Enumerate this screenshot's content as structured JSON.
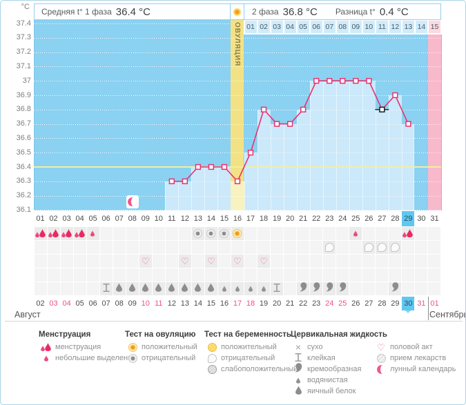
{
  "header": {
    "unit": "°C",
    "phase1_label": "Средняя t° 1 фаза",
    "phase1_value": "36.4 °C",
    "phase2_label": "2 фаза",
    "phase2_value": "36.8 °C",
    "diff_label": "Разница t°",
    "diff_value": "0.4 °C",
    "ovulation_label": "ОВУЛЯЦИЯ"
  },
  "months": {
    "left": "Август",
    "right": "Сентябрь"
  },
  "chart_data": {
    "type": "line",
    "title": "",
    "ylabel": "°C",
    "ylim": [
      36.1,
      37.4
    ],
    "yticks": [
      "37.4",
      "37.3",
      "37.2",
      "37.1",
      "37",
      "36.9",
      "36.8",
      "36.7",
      "36.6",
      "36.5",
      "36.4",
      "36.3",
      "36.2",
      "36.1"
    ],
    "avg_phase1_temp": 36.4,
    "ovulation_day": 16,
    "selected_day": 27,
    "expected_period_day": 31,
    "moon_event_day": 8,
    "cycle_day_labels": [
      "01",
      "02",
      "03",
      "04",
      "05",
      "06",
      "07",
      "08",
      "09",
      "10",
      "11",
      "12",
      "13",
      "14",
      "15",
      "16",
      "17",
      "18",
      "19",
      "20",
      "21",
      "22",
      "23",
      "24",
      "25",
      "26",
      "27",
      "28",
      "29",
      "30",
      "31"
    ],
    "highlighted_cycle_day": 29,
    "dpo_labels": [
      "01",
      "02",
      "03",
      "04",
      "05",
      "06",
      "07",
      "08",
      "09",
      "10",
      "11",
      "12",
      "13",
      "14",
      "15"
    ],
    "dpo_start_day": 17,
    "series": [
      {
        "name": "basal-temperature",
        "points": [
          {
            "day": 11,
            "temp": 36.3
          },
          {
            "day": 12,
            "temp": 36.3
          },
          {
            "day": 13,
            "temp": 36.4
          },
          {
            "day": 14,
            "temp": 36.4
          },
          {
            "day": 15,
            "temp": 36.4
          },
          {
            "day": 16,
            "temp": 36.3
          },
          {
            "day": 17,
            "temp": 36.5
          },
          {
            "day": 18,
            "temp": 36.8
          },
          {
            "day": 19,
            "temp": 36.7
          },
          {
            "day": 20,
            "temp": 36.7
          },
          {
            "day": 21,
            "temp": 36.8
          },
          {
            "day": 22,
            "temp": 37.0
          },
          {
            "day": 23,
            "temp": 37.0
          },
          {
            "day": 24,
            "temp": 37.0
          },
          {
            "day": 25,
            "temp": 37.0
          },
          {
            "day": 26,
            "temp": 37.0
          },
          {
            "day": 27,
            "temp": 36.8
          },
          {
            "day": 28,
            "temp": 36.9
          },
          {
            "day": 29,
            "temp": 36.7
          }
        ]
      }
    ],
    "date_labels": [
      "02",
      "03",
      "04",
      "05",
      "06",
      "07",
      "08",
      "09",
      "10",
      "11",
      "12",
      "13",
      "14",
      "15",
      "16",
      "17",
      "18",
      "19",
      "20",
      "21",
      "22",
      "23",
      "24",
      "25",
      "26",
      "27",
      "28",
      "29",
      "30",
      "31",
      "01"
    ],
    "red_date_indices": [
      1,
      2,
      8,
      9,
      15,
      16,
      22,
      23,
      29,
      30
    ],
    "highlighted_date_index": 28
  },
  "event_rows": [
    {
      "name": "menstruation-and-ovulation-tests",
      "cells": [
        {
          "day": 1,
          "icon": "menses-heavy"
        },
        {
          "day": 2,
          "icon": "menses-heavy"
        },
        {
          "day": 3,
          "icon": "menses-heavy"
        },
        {
          "day": 4,
          "icon": "menses-heavy"
        },
        {
          "day": 5,
          "icon": "menses-light"
        },
        {
          "day": 13,
          "icon": "ovulation-test-negative"
        },
        {
          "day": 14,
          "icon": "ovulation-test-negative"
        },
        {
          "day": 15,
          "icon": "ovulation-test-negative"
        },
        {
          "day": 16,
          "icon": "ovulation-test-positive"
        },
        {
          "day": 25,
          "icon": "menses-light"
        },
        {
          "day": 29,
          "icon": "menses-heavy"
        }
      ]
    },
    {
      "name": "pregnancy-tests",
      "cells": [
        {
          "day": 23,
          "icon": "pregnancy-test-negative"
        },
        {
          "day": 26,
          "icon": "pregnancy-test-negative"
        },
        {
          "day": 27,
          "icon": "pregnancy-test-negative"
        },
        {
          "day": 28,
          "icon": "pregnancy-test-negative"
        }
      ]
    },
    {
      "name": "intercourse",
      "cells": [
        {
          "day": 9,
          "icon": "heart"
        },
        {
          "day": 12,
          "icon": "heart"
        },
        {
          "day": 14,
          "icon": "heart"
        },
        {
          "day": 16,
          "icon": "heart"
        },
        {
          "day": 18,
          "icon": "heart"
        }
      ]
    },
    {
      "name": "medications",
      "cells": []
    },
    {
      "name": "cervical-fluid",
      "cells": [
        {
          "day": 6,
          "icon": "sticky"
        },
        {
          "day": 7,
          "icon": "eggwhite"
        },
        {
          "day": 8,
          "icon": "eggwhite"
        },
        {
          "day": 9,
          "icon": "eggwhite"
        },
        {
          "day": 10,
          "icon": "eggwhite"
        },
        {
          "day": 11,
          "icon": "eggwhite"
        },
        {
          "day": 12,
          "icon": "eggwhite"
        },
        {
          "day": 13,
          "icon": "eggwhite"
        },
        {
          "day": 14,
          "icon": "eggwhite"
        },
        {
          "day": 15,
          "icon": "watery"
        },
        {
          "day": 16,
          "icon": "watery"
        },
        {
          "day": 17,
          "icon": "watery"
        },
        {
          "day": 18,
          "icon": "watery"
        },
        {
          "day": 19,
          "icon": "sticky"
        },
        {
          "day": 21,
          "icon": "creamy"
        },
        {
          "day": 22,
          "icon": "creamy"
        },
        {
          "day": 23,
          "icon": "creamy"
        },
        {
          "day": 24,
          "icon": "creamy"
        },
        {
          "day": 28,
          "icon": "creamy"
        }
      ]
    }
  ],
  "legend": {
    "columns": [
      {
        "title": "Менструация",
        "items": [
          {
            "icon": "menses-heavy",
            "label": "менструация"
          },
          {
            "icon": "menses-light",
            "label": "небольшие выделения"
          }
        ]
      },
      {
        "title": "Тест на овуляцию",
        "items": [
          {
            "icon": "ovulation-test-positive",
            "label": "положительный"
          },
          {
            "icon": "ovulation-test-negative",
            "label": "отрицательный"
          }
        ]
      },
      {
        "title": "Тест на беременность",
        "items": [
          {
            "icon": "pregnancy-test-positive",
            "label": "положительный"
          },
          {
            "icon": "pregnancy-test-negative",
            "label": "отрицательный"
          },
          {
            "icon": "pregnancy-test-weak",
            "label": "слабоположительный"
          }
        ]
      },
      {
        "title": "Цервикальная жидкость",
        "items": [
          {
            "icon": "dry",
            "label": "сухо"
          },
          {
            "icon": "sticky",
            "label": "клейкая"
          },
          {
            "icon": "creamy",
            "label": "кремообразная"
          },
          {
            "icon": "watery",
            "label": "водянистая"
          },
          {
            "icon": "eggwhite",
            "label": "яичный белок"
          }
        ]
      },
      {
        "title": "",
        "items": [
          {
            "icon": "heart",
            "label": "половой акт"
          },
          {
            "icon": "pill",
            "label": "прием лекарств"
          },
          {
            "icon": "moon",
            "label": "лунный календарь"
          }
        ]
      }
    ]
  },
  "colors": {
    "plot_bg": "#8bd1f1",
    "bar_fill": "#cbe9fa",
    "ovulation_band": "#f2e285",
    "ovulation_band_fill": "#f8f2c0",
    "period_forecast_pink": "#f8b9cc",
    "dpo_cell_blue": "#d0ecfb",
    "dpo_cell_pink": "#fcd9e3",
    "temp_line": "#e73170",
    "selected_marker": "#1a1a1a",
    "avg_line_yellow": "#f2efa0",
    "highlight_blue": "#5fc7f0",
    "weekend_red": "#f0507b",
    "menses_pink": "#e92a62"
  }
}
